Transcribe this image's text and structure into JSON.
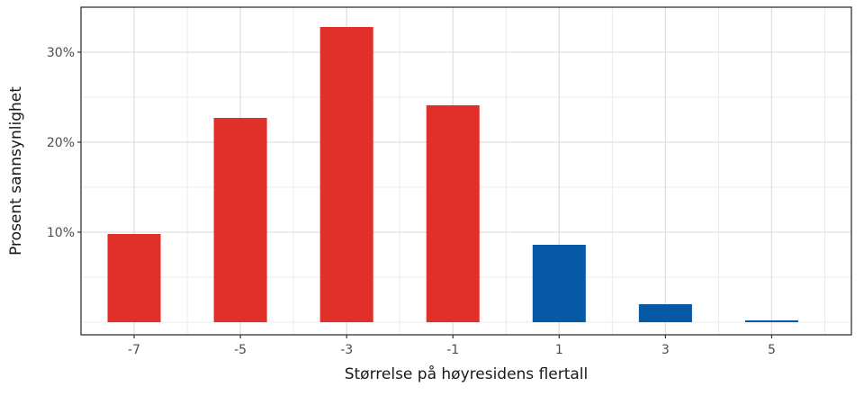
{
  "chart_data": {
    "type": "bar",
    "title": "",
    "xlabel": "Størrelse på høyresidens flertall",
    "ylabel": "Prosent sannsynlighet",
    "categories": [
      "-7",
      "-5",
      "-3",
      "-1",
      "1",
      "3",
      "5"
    ],
    "x": [
      -7,
      -5,
      -3,
      -1,
      1,
      3,
      5
    ],
    "values": [
      9.8,
      22.7,
      32.8,
      24.1,
      8.6,
      2.0,
      0.2
    ],
    "bar_colors": [
      "#e1302a",
      "#e1302a",
      "#e1302a",
      "#e1302a",
      "#0659a4",
      "#0659a4",
      "#0659a4"
    ],
    "xlim": [
      -8,
      6.5
    ],
    "ylim": [
      -1.4,
      35
    ],
    "y_ticks": [
      10,
      20,
      30
    ],
    "y_tick_labels": [
      "10%",
      "20%",
      "30%"
    ],
    "grid": true,
    "legend": "none"
  }
}
